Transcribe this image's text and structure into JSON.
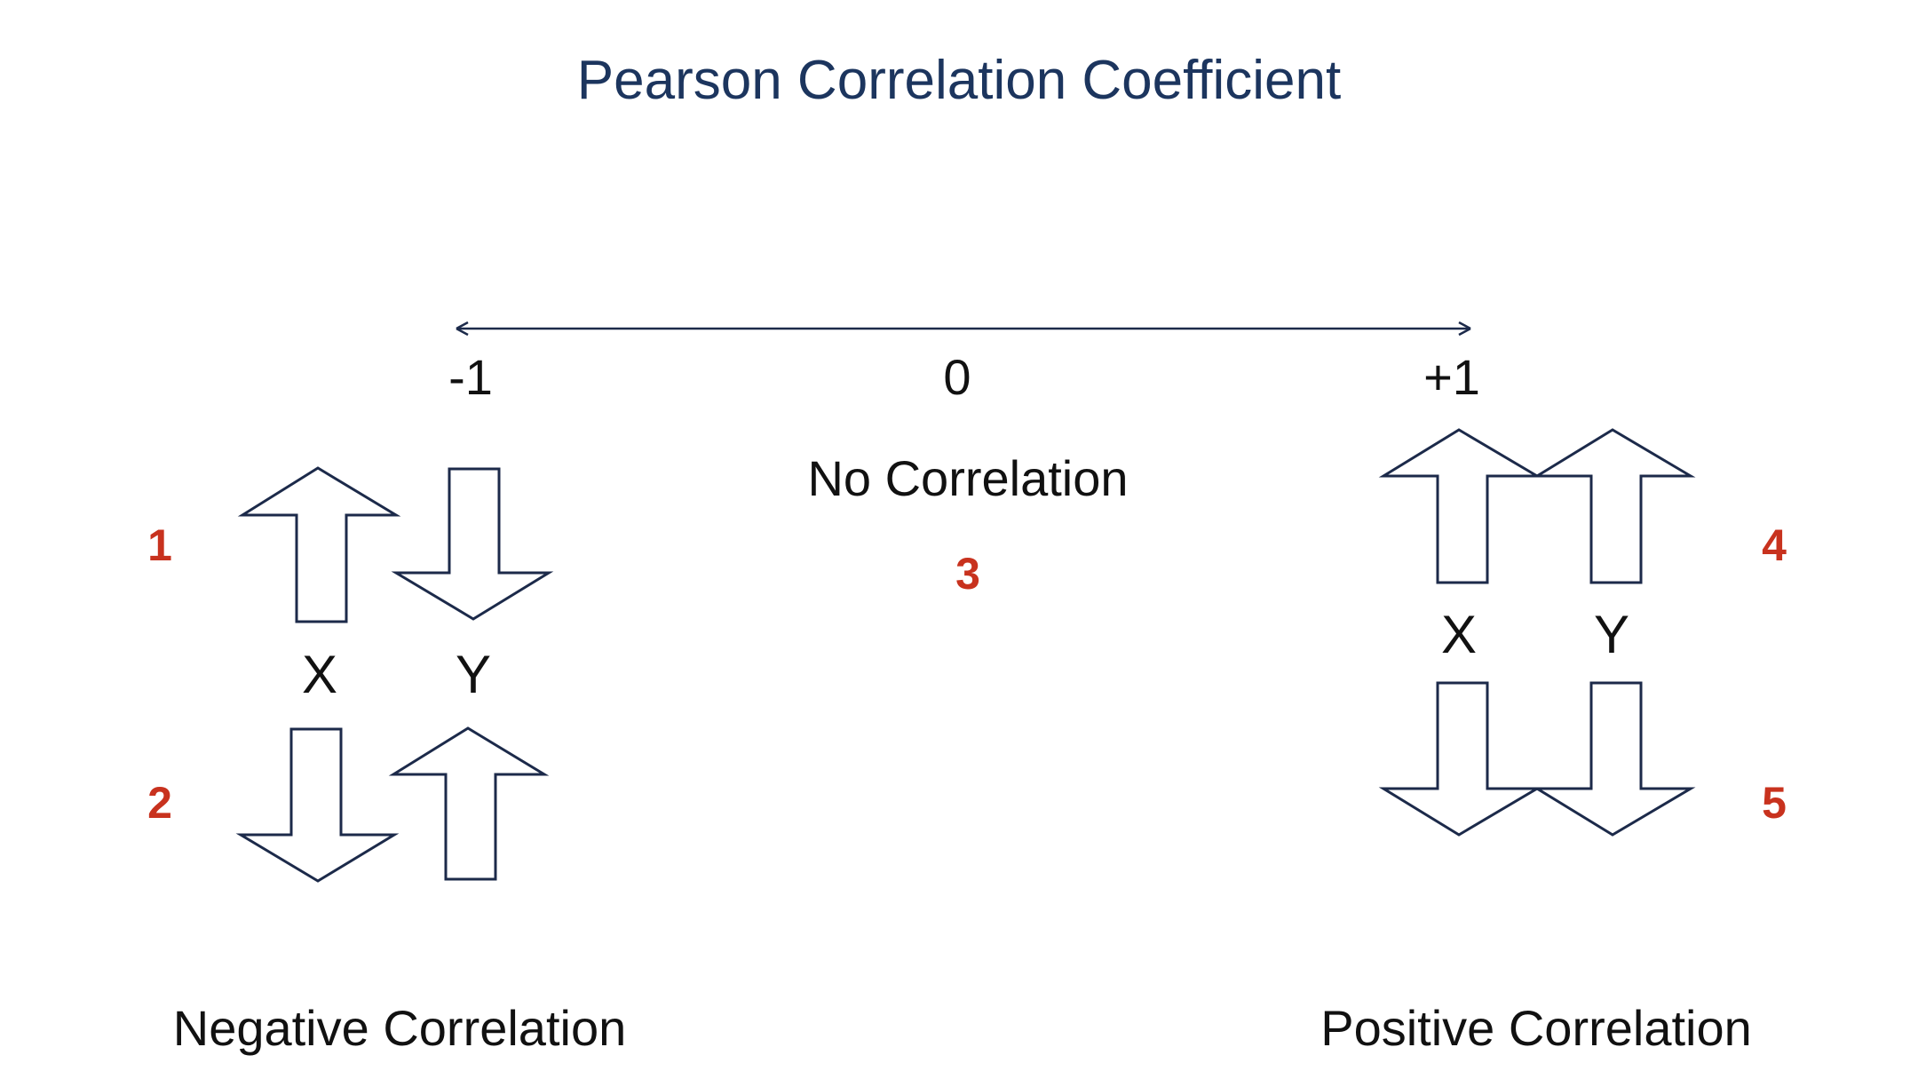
{
  "title": "Pearson Correlation Coefficient",
  "scale": {
    "min_label": "-1",
    "mid_label": "0",
    "max_label": "+1"
  },
  "no_correlation": {
    "label": "No Correlation",
    "number": "3"
  },
  "negative": {
    "label": "Negative Correlation",
    "x_label": "X",
    "y_label": "Y",
    "case_top_number": "1",
    "case_bottom_number": "2"
  },
  "positive": {
    "label": "Positive Correlation",
    "x_label": "X",
    "y_label": "Y",
    "case_top_number": "4",
    "case_bottom_number": "5"
  },
  "colors": {
    "title": "#1c355e",
    "case_number": "#c8321e",
    "arrow_outline": "#1c2a4a",
    "text": "#111111"
  }
}
